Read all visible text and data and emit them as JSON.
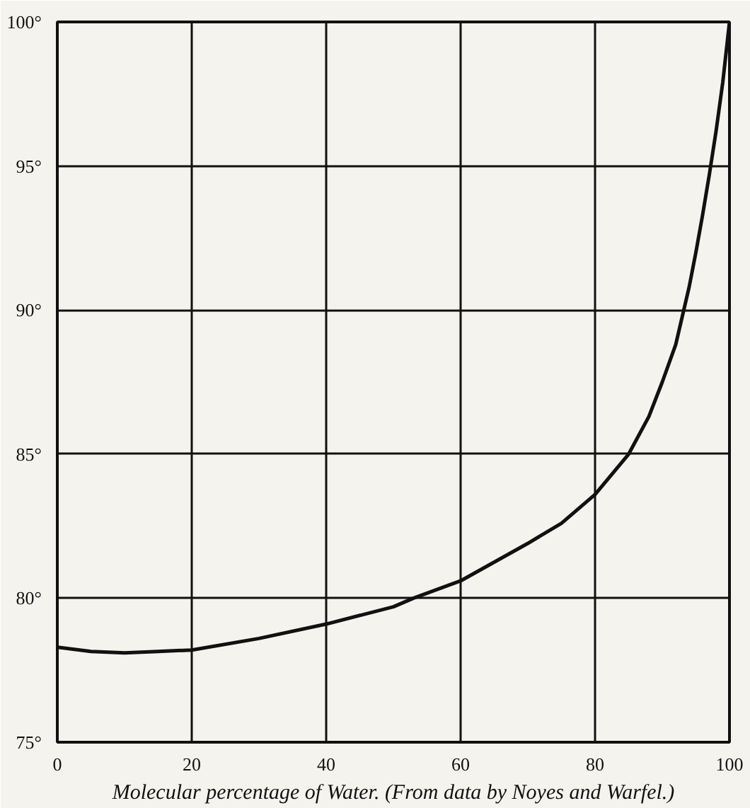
{
  "chart_data": {
    "type": "line",
    "xlabel": "Molecular percentage of Water. (From data by Noyes and Warfel.)",
    "x": [
      0,
      5,
      10,
      15,
      20,
      30,
      40,
      50,
      53,
      60,
      70,
      75,
      80,
      85,
      88,
      90,
      92,
      93,
      94,
      95,
      96,
      97,
      98,
      99,
      100
    ],
    "series": [
      {
        "color": "#111111",
        "values": [
          78.3,
          78.15,
          78.1,
          78.15,
          78.2,
          78.6,
          79.1,
          79.7,
          80.0,
          80.6,
          81.9,
          82.6,
          83.6,
          85.0,
          86.3,
          87.5,
          88.8,
          89.8,
          90.8,
          92.0,
          93.3,
          94.7,
          96.2,
          97.9,
          100.0
        ]
      }
    ],
    "xlim": [
      0,
      100
    ],
    "ylim": [
      75,
      100
    ],
    "xticks": [
      0,
      20,
      40,
      60,
      80,
      100
    ],
    "yticks": [
      {
        "value": 75,
        "label": "75°"
      },
      {
        "value": 80,
        "label": "80°"
      },
      {
        "value": 85,
        "label": "85°"
      },
      {
        "value": 90,
        "label": "90°"
      },
      {
        "value": 95,
        "label": "95°"
      },
      {
        "value": 100,
        "label": "100°"
      }
    ],
    "grid": true,
    "marker": "none",
    "line_style": "solid"
  }
}
